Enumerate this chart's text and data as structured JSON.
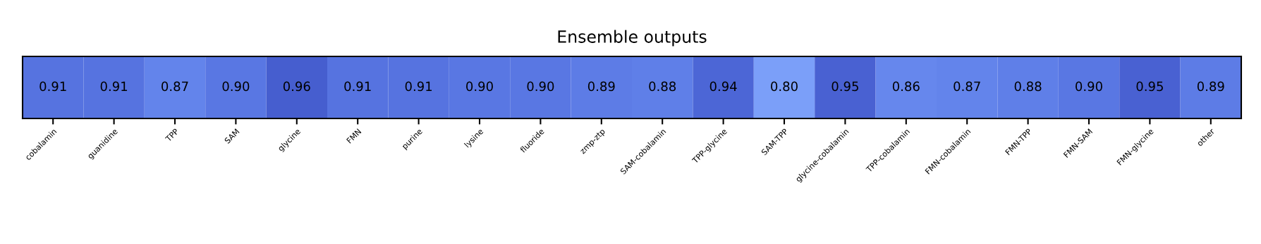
{
  "chart_data": {
    "type": "heatmap",
    "title": "Ensemble outputs",
    "categories": [
      "cobalamin",
      "guanidine",
      "TPP",
      "SAM",
      "glycine",
      "FMN",
      "purine",
      "lysine",
      "fluoride",
      "zmp-ztp",
      "SAM-cobalamin",
      "TPP-glycine",
      "SAM-TPP",
      "glycine-cobalamin",
      "TPP-cobalamin",
      "FMN-cobalamin",
      "FMN-TPP",
      "FMN-SAM",
      "FMN-glycine",
      "other"
    ],
    "y_categories": [
      null
    ],
    "cells": [
      [
        0.91,
        0.91,
        0.87,
        0.9,
        0.96,
        0.91,
        0.91,
        0.9,
        0.9,
        0.89,
        0.88,
        0.94,
        0.8,
        0.95,
        0.86,
        0.87,
        0.88,
        0.9,
        0.95,
        0.89
      ]
    ],
    "cell_labels": [
      [
        "0.91",
        "0.91",
        "0.87",
        "0.90",
        "0.96",
        "0.91",
        "0.91",
        "0.90",
        "0.90",
        "0.89",
        "0.88",
        "0.94",
        "0.80",
        "0.95",
        "0.86",
        "0.87",
        "0.88",
        "0.90",
        "0.95",
        "0.89"
      ]
    ],
    "tick_labels": "x"
  }
}
